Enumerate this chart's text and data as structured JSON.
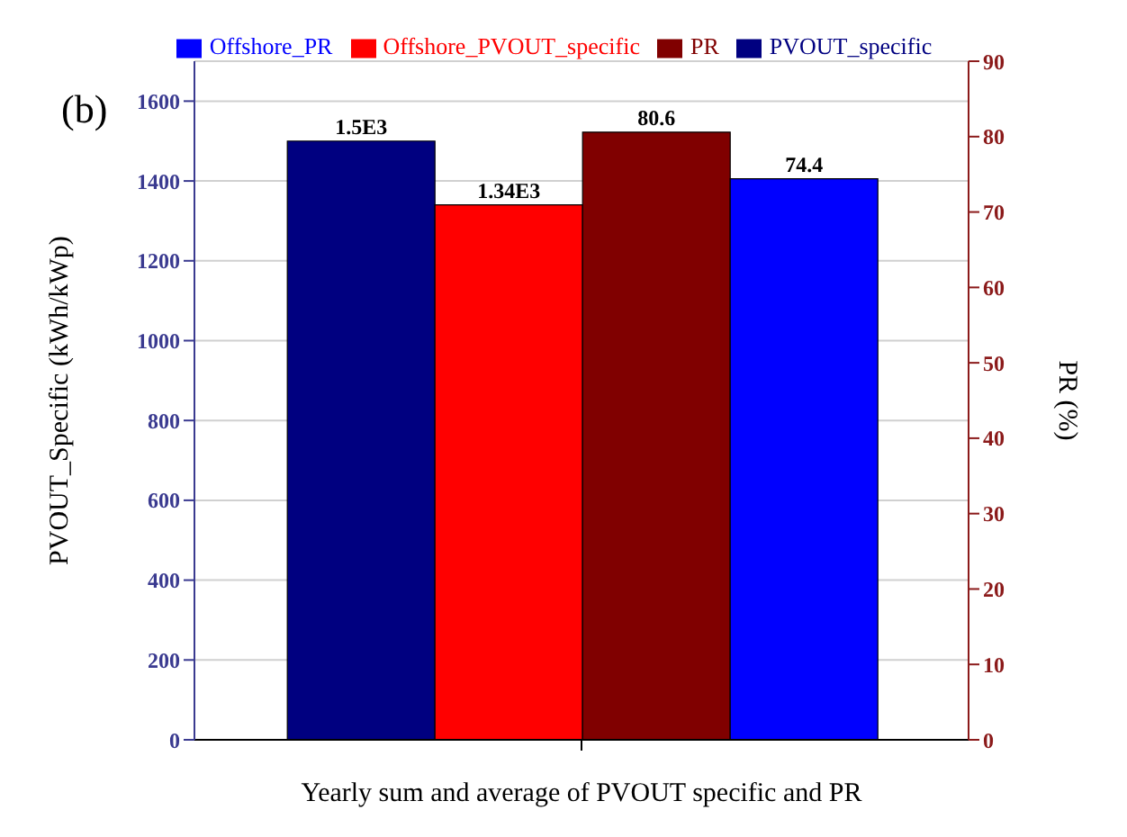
{
  "chart_data": {
    "type": "bar",
    "xlabel": "Yearly sum and average of PVOUT specific and PR",
    "ylabel": "PVOUT_Specific (kWh/kWp)",
    "y2label": "PR (%)",
    "annotations": [
      "(b)"
    ],
    "categories": [
      null
    ],
    "series": [
      {
        "name": "PVOUT_specific",
        "color": "#000080",
        "values": [
          1500
        ],
        "value_labels": [
          "1.5E3"
        ]
      },
      {
        "name": "Offshore_PVOUT_specific",
        "color": "#ff0000",
        "values": [
          1340
        ],
        "value_labels": [
          "1.34E3"
        ]
      },
      {
        "name": "PR",
        "color": "#800000",
        "values": [
          80.6
        ],
        "value_labels": [
          "80.6"
        ],
        "axis": "y2"
      },
      {
        "name": "Offshore_PR",
        "color": "#0000ff",
        "values": [
          74.4
        ],
        "value_labels": [
          "74.4"
        ],
        "axis": "y2"
      }
    ],
    "ylim": [
      0,
      1700
    ],
    "yticks": [
      0,
      200,
      400,
      600,
      800,
      1000,
      1200,
      1400,
      1600
    ],
    "y2lim": [
      0,
      90
    ],
    "y2ticks": [
      0,
      10,
      20,
      30,
      40,
      50,
      60,
      70,
      80,
      90
    ],
    "grid": "y",
    "legend": "top"
  }
}
